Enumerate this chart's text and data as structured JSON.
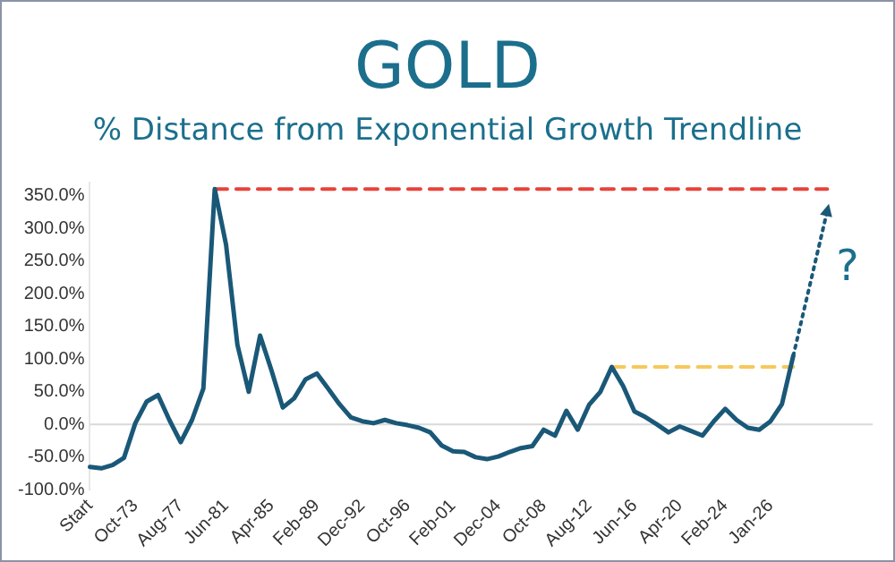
{
  "chart_data": {
    "type": "line",
    "title": "GOLD",
    "subtitle": "% Distance from Exponential Growth Trendline",
    "categories": [
      "Start",
      null,
      null,
      null,
      "Oct-73",
      null,
      null,
      null,
      "Aug-77",
      null,
      null,
      null,
      "Jun-81",
      null,
      null,
      null,
      "Apr-85",
      null,
      null,
      null,
      "Feb-89",
      null,
      null,
      null,
      "Dec-92",
      null,
      null,
      null,
      "Oct-96",
      null,
      null,
      null,
      "Feb-01",
      null,
      null,
      null,
      "Dec-04",
      null,
      null,
      null,
      "Oct-08",
      null,
      null,
      null,
      "Aug-12",
      null,
      null,
      null,
      "Jun-16",
      null,
      null,
      null,
      "Apr-20",
      null,
      null,
      null,
      "Feb-24",
      null,
      null,
      null,
      "Jan-26",
      null,
      null,
      null,
      null,
      null,
      null,
      null,
      null,
      null
    ],
    "series": [
      {
        "color": "#1a5878",
        "values": [
          -65,
          -67,
          -62,
          -51,
          2,
          35,
          45,
          7,
          -27,
          7,
          55,
          360,
          275,
          122,
          50,
          136,
          83,
          26,
          40,
          69,
          78,
          55,
          31,
          11,
          5,
          2,
          7,
          2,
          -1,
          -5,
          -12,
          -32,
          -41,
          -42,
          -50,
          -53,
          -49,
          -42,
          -36,
          -33,
          -8,
          -17,
          21,
          -8,
          30,
          50,
          88,
          59,
          20,
          11,
          0,
          -12,
          -3,
          -10,
          -17,
          5,
          24,
          7,
          -5,
          -8,
          5,
          31,
          105,
          null,
          null,
          null,
          null,
          null,
          null,
          null
        ]
      },
      {
        "type": "line",
        "color": "#e8423a",
        "line_style": "dashed",
        "values": [
          null,
          null,
          null,
          null,
          null,
          null,
          null,
          null,
          null,
          null,
          null,
          360,
          360,
          360,
          360,
          360,
          360,
          360,
          360,
          360,
          360,
          360,
          360,
          360,
          360,
          360,
          360,
          360,
          360,
          360,
          360,
          360,
          360,
          360,
          360,
          360,
          360,
          360,
          360,
          360,
          360,
          360,
          360,
          360,
          360,
          360,
          360,
          360,
          360,
          360,
          360,
          360,
          360,
          360,
          360,
          360,
          360,
          360,
          360,
          360,
          360,
          360,
          360,
          360,
          360,
          360,
          null,
          null,
          null,
          null
        ]
      },
      {
        "type": "line",
        "color": "#f5c95a",
        "line_style": "dashed",
        "values": [
          null,
          null,
          null,
          null,
          null,
          null,
          null,
          null,
          null,
          null,
          null,
          null,
          null,
          null,
          null,
          null,
          null,
          null,
          null,
          null,
          null,
          null,
          null,
          null,
          null,
          null,
          null,
          null,
          null,
          null,
          null,
          null,
          null,
          null,
          null,
          null,
          null,
          null,
          null,
          null,
          null,
          null,
          null,
          null,
          null,
          null,
          88,
          88,
          88,
          88,
          88,
          88,
          88,
          88,
          88,
          88,
          88,
          88,
          88,
          88,
          88,
          88,
          88,
          null,
          null,
          null,
          null,
          null,
          null,
          null
        ]
      },
      {
        "type": "line",
        "color": "#1a5878",
        "line_style": "dotted",
        "marker": "triangle",
        "values": [
          null,
          null,
          null,
          null,
          null,
          null,
          null,
          null,
          null,
          null,
          null,
          null,
          null,
          null,
          null,
          null,
          null,
          null,
          null,
          null,
          null,
          null,
          null,
          null,
          null,
          null,
          null,
          null,
          null,
          null,
          null,
          null,
          null,
          null,
          null,
          null,
          null,
          null,
          null,
          null,
          null,
          null,
          null,
          null,
          null,
          null,
          null,
          null,
          null,
          null,
          null,
          null,
          null,
          null,
          null,
          null,
          null,
          null,
          null,
          null,
          null,
          null,
          105,
          null,
          null,
          327,
          null,
          null,
          null,
          null
        ]
      }
    ],
    "annotations": [
      "?"
    ],
    "ref_lines": [
      {
        "axis": "y",
        "value": 0,
        "color": "#d9d9d9"
      }
    ],
    "ylim": [
      -100,
      370
    ],
    "yticks": [
      {
        "value": -100,
        "label": "-100.0%"
      },
      {
        "value": -50,
        "label": "-50.0%"
      },
      {
        "value": 0,
        "label": "0.0%"
      },
      {
        "value": 50,
        "label": "50.0%"
      },
      {
        "value": 100,
        "label": "100.0%"
      },
      {
        "value": 150,
        "label": "150.0%"
      },
      {
        "value": 200,
        "label": "200.0%"
      },
      {
        "value": 250,
        "label": "250.0%"
      },
      {
        "value": 300,
        "label": "300.0%"
      },
      {
        "value": 350,
        "label": "350.0%"
      }
    ],
    "grid": false,
    "legend": false,
    "marker": "none",
    "line_style": "solid"
  }
}
